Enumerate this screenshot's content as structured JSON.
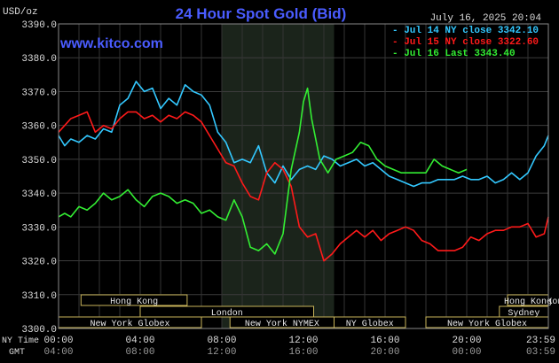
{
  "chart_data": {
    "type": "line",
    "title": "24 Hour Spot Gold (Bid)",
    "website": "www.kitco.com",
    "date_label": "July 16, 2025 20:04",
    "y_unit": "USD/oz",
    "ylim": [
      3300,
      3390
    ],
    "y_ticks": [
      "3390.0",
      "3380.0",
      "3370.0",
      "3360.0",
      "3350.0",
      "3340.0",
      "3330.0",
      "3320.0",
      "3310.0",
      "3300.0"
    ],
    "x_hours_range": [
      0,
      24
    ],
    "x_ticks_ny": [
      "00:00",
      "04:00",
      "08:00",
      "12:00",
      "16:00",
      "20:00",
      "23:59"
    ],
    "x_ticks_gmt": [
      "04:00",
      "08:00",
      "12:00",
      "16:00",
      "20:00",
      "00:00",
      "03:59"
    ],
    "row_label_ny": "NY Time",
    "row_label_gmt": "GMT",
    "grid": true,
    "legend_position": "top-right",
    "highlight_hours": [
      8.0,
      13.5
    ],
    "series": [
      {
        "name": "Jul 14 NY close 3342.10",
        "color": "#33c8ff",
        "x": [
          0,
          0.3,
          0.6,
          1.0,
          1.4,
          1.8,
          2.2,
          2.6,
          3.0,
          3.4,
          3.8,
          4.2,
          4.6,
          5.0,
          5.4,
          5.8,
          6.2,
          6.6,
          7.0,
          7.4,
          7.8,
          8.2,
          8.6,
          9.0,
          9.4,
          9.8,
          10.2,
          10.6,
          11.0,
          11.4,
          11.8,
          12.2,
          12.6,
          13.0,
          13.4,
          13.8,
          14.2,
          14.6,
          15.0,
          15.4,
          15.8,
          16.2,
          16.6,
          17.0,
          17.4,
          17.8,
          18.2,
          18.6,
          19.0,
          19.4,
          19.8,
          20.2,
          20.6,
          21.0,
          21.4,
          21.8,
          22.2,
          22.6,
          23.0,
          23.4,
          23.8,
          24.0
        ],
        "values": [
          3357,
          3354,
          3356,
          3355,
          3357,
          3356,
          3359,
          3358,
          3366,
          3368,
          3373,
          3370,
          3371,
          3365,
          3368,
          3366,
          3372,
          3370,
          3369,
          3366,
          3358,
          3355,
          3349,
          3350,
          3349,
          3354,
          3346,
          3343,
          3348,
          3344,
          3347,
          3348,
          3347,
          3351,
          3350,
          3348,
          3349,
          3350,
          3348,
          3349,
          3347,
          3345,
          3344,
          3343,
          3342,
          3343,
          3343,
          3344,
          3344,
          3344,
          3345,
          3344,
          3344,
          3345,
          3343,
          3344,
          3346,
          3344,
          3346,
          3351,
          3354,
          3357
        ]
      },
      {
        "name": "Jul 15 NY close 3322.60",
        "color": "#ff1a1a",
        "x": [
          0,
          0.3,
          0.6,
          1.0,
          1.4,
          1.8,
          2.2,
          2.6,
          3.0,
          3.4,
          3.8,
          4.2,
          4.6,
          5.0,
          5.4,
          5.8,
          6.2,
          6.6,
          7.0,
          7.4,
          7.8,
          8.2,
          8.6,
          9.0,
          9.4,
          9.8,
          10.2,
          10.6,
          11.0,
          11.4,
          11.8,
          12.2,
          12.6,
          13.0,
          13.4,
          13.8,
          14.2,
          14.6,
          15.0,
          15.4,
          15.8,
          16.2,
          16.6,
          17.0,
          17.4,
          17.8,
          18.2,
          18.6,
          19.0,
          19.4,
          19.8,
          20.2,
          20.6,
          21.0,
          21.4,
          21.8,
          22.2,
          22.6,
          23.0,
          23.4,
          23.8,
          24.0
        ],
        "values": [
          3358,
          3360,
          3362,
          3363,
          3364,
          3358,
          3360,
          3359,
          3362,
          3364,
          3364,
          3362,
          3363,
          3361,
          3363,
          3362,
          3364,
          3363,
          3361,
          3357,
          3353,
          3349,
          3348,
          3343,
          3339,
          3338,
          3346,
          3349,
          3347,
          3342,
          3330,
          3327,
          3328,
          3320,
          3322,
          3325,
          3327,
          3329,
          3327,
          3329,
          3326,
          3328,
          3329,
          3330,
          3329,
          3326,
          3325,
          3323,
          3323,
          3323,
          3324,
          3327,
          3326,
          3328,
          3329,
          3329,
          3330,
          3330,
          3331,
          3327,
          3328,
          3333
        ]
      },
      {
        "name": "Jul 16 Last 3343.40",
        "color": "#33ee33",
        "x": [
          0,
          0.3,
          0.6,
          1.0,
          1.4,
          1.8,
          2.2,
          2.6,
          3.0,
          3.4,
          3.8,
          4.2,
          4.6,
          5.0,
          5.4,
          5.8,
          6.2,
          6.6,
          7.0,
          7.4,
          7.8,
          8.2,
          8.6,
          9.0,
          9.4,
          9.8,
          10.2,
          10.6,
          11.0,
          11.4,
          11.8,
          12.0,
          12.2,
          12.4,
          12.8,
          13.2,
          13.6,
          14.0,
          14.4,
          14.8,
          15.2,
          15.6,
          16.0,
          16.4,
          16.8,
          17.2,
          17.6,
          18.0,
          18.4,
          18.8,
          19.2,
          19.6,
          20.0
        ],
        "values": [
          3333,
          3334,
          3333,
          3336,
          3335,
          3337,
          3340,
          3338,
          3339,
          3341,
          3338,
          3336,
          3339,
          3340,
          3339,
          3337,
          3338,
          3337,
          3334,
          3335,
          3333,
          3332,
          3338,
          3333,
          3324,
          3323,
          3325,
          3322,
          3328,
          3347,
          3358,
          3367,
          3371,
          3362,
          3350,
          3346,
          3350,
          3351,
          3352,
          3355,
          3354,
          3350,
          3348,
          3347,
          3346,
          3346,
          3346,
          3346,
          3350,
          3348,
          3347,
          3346,
          3347
        ]
      }
    ],
    "session_bars": [
      {
        "label": "Hong Kong",
        "start_hour": 1.1,
        "end_hour": 6.3,
        "row": 1
      },
      {
        "label": "Hong Kong",
        "start_hour": 23.6,
        "end_hour": 24.0,
        "row": 1
      },
      {
        "label": "Hong Kong",
        "start_hour": 22.0,
        "end_hour": 24.0,
        "row": 1
      },
      {
        "label": "London",
        "start_hour": 4.0,
        "end_hour": 12.5,
        "row": 2
      },
      {
        "label": "Sydney",
        "start_hour": 21.6,
        "end_hour": 24.0,
        "row": 2
      },
      {
        "label": "New York Globex",
        "start_hour": 0.0,
        "end_hour": 7.0,
        "row": 3
      },
      {
        "label": "New York NYMEX",
        "start_hour": 8.4,
        "end_hour": 13.5,
        "row": 3
      },
      {
        "label": "NY Globex",
        "start_hour": 13.5,
        "end_hour": 17.0,
        "row": 3
      },
      {
        "label": "New York Globex",
        "start_hour": 18.0,
        "end_hour": 24.0,
        "row": 3
      }
    ]
  }
}
